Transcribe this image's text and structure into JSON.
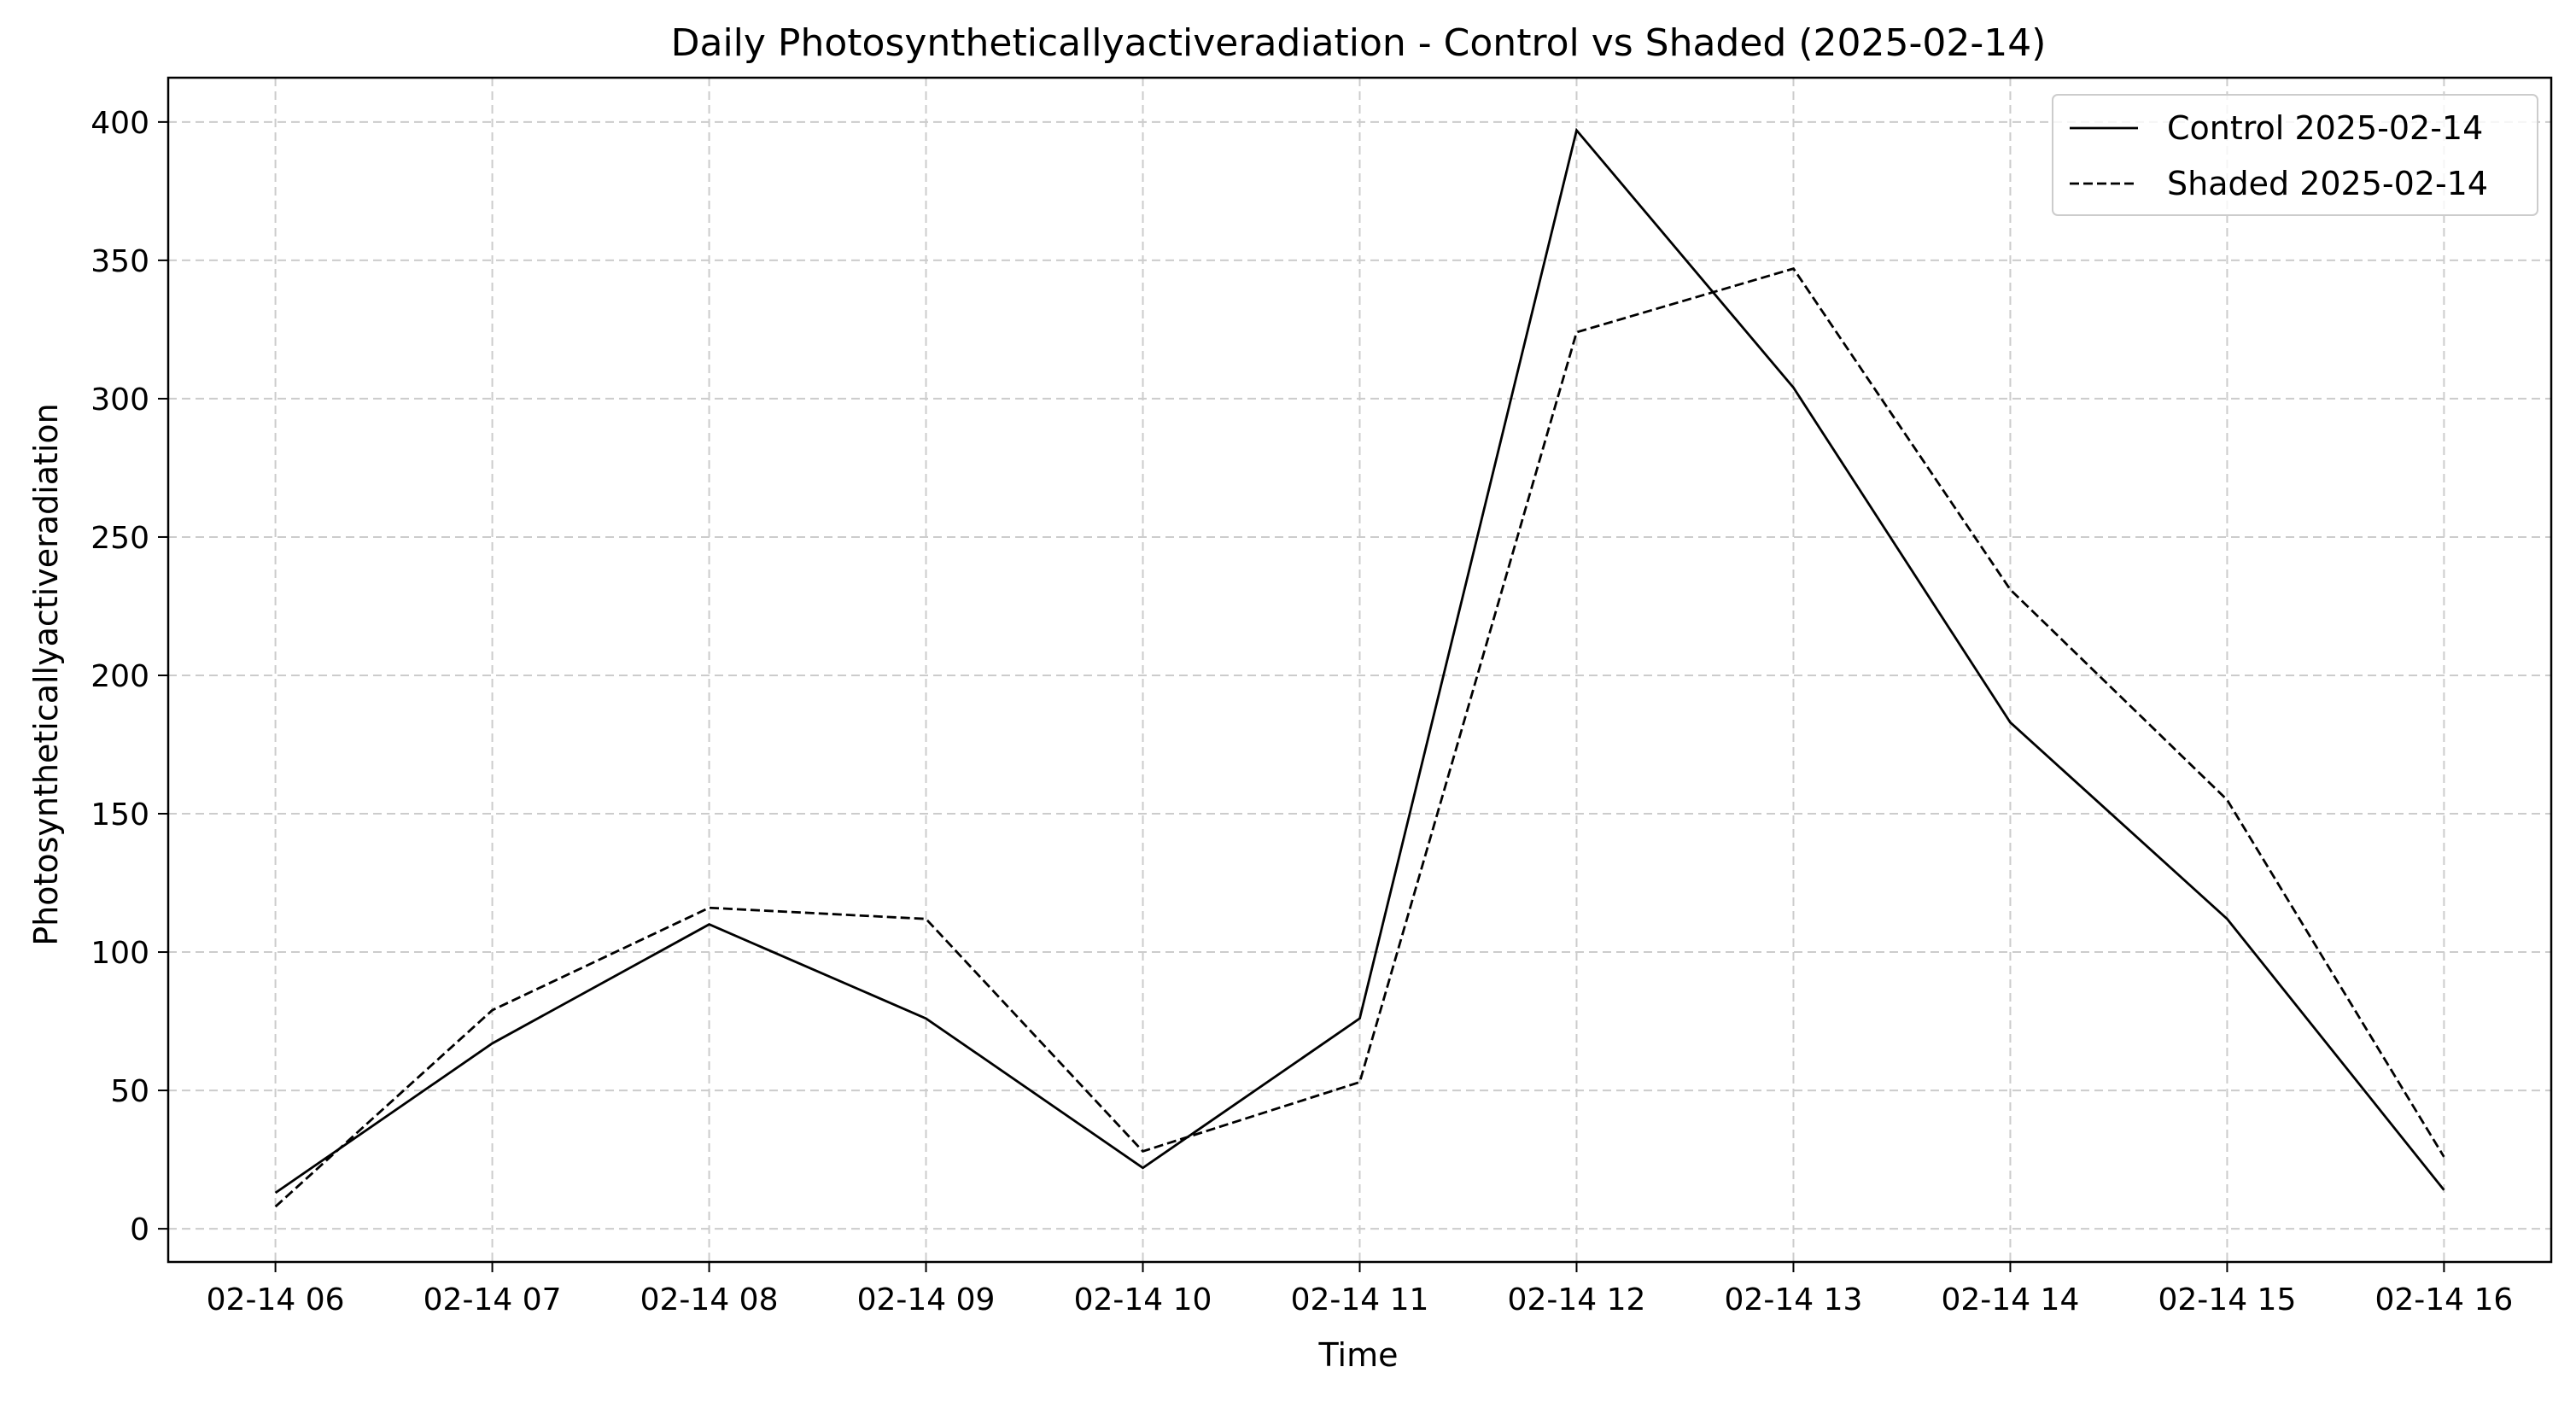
{
  "chart_data": {
    "type": "line",
    "title": "Daily Photosyntheticallyactiveradiation - Control vs Shaded (2025-02-14)",
    "xlabel": "Time",
    "ylabel": "Photosyntheticallyactiveradiation",
    "x": [
      "02-14 06",
      "02-14 07",
      "02-14 08",
      "02-14 09",
      "02-14 10",
      "02-14 11",
      "02-14 12",
      "02-14 13",
      "02-14 14",
      "02-14 15",
      "02-14 16"
    ],
    "ylim": [
      -12,
      416
    ],
    "yticks": [
      0,
      50,
      100,
      150,
      200,
      250,
      300,
      350,
      400
    ],
    "grid": true,
    "legend_position": "top-right",
    "series": [
      {
        "name": "Control 2025-02-14",
        "style": "solid",
        "color": "#000000",
        "values": [
          13,
          67,
          110,
          76,
          22,
          76,
          397,
          304,
          183,
          112,
          14
        ]
      },
      {
        "name": "Shaded 2025-02-14",
        "style": "dashed",
        "color": "#000000",
        "values": [
          8,
          79,
          116,
          112,
          28,
          53,
          324,
          347,
          231,
          155,
          26
        ]
      }
    ],
    "colors": {
      "grid": "#cccccc",
      "axes": "#000000",
      "background": "#ffffff"
    }
  }
}
